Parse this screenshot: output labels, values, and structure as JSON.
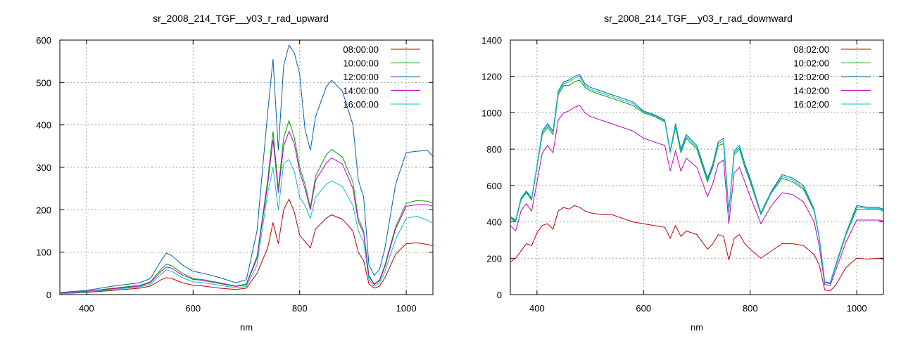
{
  "chart_data": [
    {
      "type": "line",
      "title": "sr_2008_214_TGF__y03_r_rad_upward",
      "xlabel": "nm",
      "ylabel": "",
      "xlim": [
        350,
        1050
      ],
      "ylim": [
        0,
        600
      ],
      "xticks": [
        400,
        600,
        800,
        1000
      ],
      "yticks": [
        0,
        100,
        200,
        300,
        400,
        500,
        600
      ],
      "grid": true,
      "legend_position": "top-right",
      "series": [
        {
          "name": "08:00:00",
          "color": "#c00000",
          "x": [
            350,
            400,
            450,
            500,
            520,
            540,
            550,
            560,
            580,
            600,
            620,
            650,
            680,
            700,
            720,
            740,
            750,
            760,
            770,
            780,
            790,
            800,
            810,
            820,
            830,
            850,
            860,
            880,
            900,
            910,
            920,
            930,
            940,
            950,
            960,
            980,
            1000,
            1020,
            1040,
            1050
          ],
          "values": [
            2,
            5,
            10,
            15,
            20,
            35,
            40,
            38,
            28,
            22,
            20,
            15,
            12,
            15,
            50,
            110,
            170,
            120,
            200,
            225,
            195,
            140,
            125,
            110,
            155,
            180,
            188,
            178,
            150,
            100,
            80,
            25,
            15,
            20,
            40,
            95,
            120,
            122,
            118,
            115
          ]
        },
        {
          "name": "10:00:00",
          "color": "#00a000",
          "x": [
            350,
            400,
            450,
            500,
            520,
            540,
            550,
            560,
            580,
            600,
            620,
            650,
            680,
            700,
            720,
            740,
            750,
            760,
            770,
            780,
            790,
            800,
            810,
            820,
            830,
            850,
            860,
            880,
            900,
            910,
            920,
            930,
            940,
            950,
            960,
            980,
            1000,
            1020,
            1040,
            1050
          ],
          "values": [
            3,
            8,
            15,
            22,
            30,
            60,
            72,
            68,
            50,
            38,
            35,
            28,
            20,
            25,
            90,
            270,
            385,
            250,
            370,
            410,
            370,
            300,
            260,
            205,
            280,
            330,
            342,
            325,
            265,
            180,
            150,
            45,
            25,
            35,
            70,
            160,
            215,
            222,
            220,
            215
          ]
        },
        {
          "name": "12:00:00",
          "color": "#0060b0",
          "x": [
            350,
            400,
            450,
            500,
            520,
            540,
            550,
            560,
            580,
            600,
            620,
            650,
            680,
            700,
            720,
            740,
            750,
            760,
            770,
            780,
            790,
            800,
            810,
            820,
            830,
            850,
            860,
            880,
            900,
            910,
            920,
            930,
            940,
            950,
            960,
            980,
            1000,
            1020,
            1040,
            1050
          ],
          "values": [
            5,
            10,
            20,
            28,
            38,
            80,
            98,
            92,
            70,
            55,
            50,
            40,
            28,
            35,
            150,
            430,
            555,
            340,
            540,
            588,
            570,
            520,
            390,
            340,
            420,
            490,
            505,
            480,
            400,
            270,
            230,
            70,
            45,
            60,
            110,
            260,
            335,
            338,
            340,
            325
          ]
        },
        {
          "name": "14:00:00",
          "color": "#c000c0",
          "x": [
            350,
            400,
            450,
            500,
            520,
            540,
            550,
            560,
            580,
            600,
            620,
            650,
            680,
            700,
            720,
            740,
            750,
            760,
            770,
            780,
            790,
            800,
            810,
            820,
            830,
            850,
            860,
            880,
            900,
            910,
            920,
            930,
            940,
            950,
            960,
            980,
            1000,
            1020,
            1040,
            1050
          ],
          "values": [
            3,
            8,
            14,
            20,
            28,
            55,
            65,
            62,
            46,
            36,
            33,
            26,
            19,
            23,
            85,
            260,
            365,
            240,
            350,
            385,
            355,
            290,
            250,
            200,
            270,
            310,
            322,
            308,
            250,
            172,
            145,
            42,
            24,
            33,
            66,
            155,
            208,
            212,
            212,
            208
          ]
        },
        {
          "name": "16:00:00",
          "color": "#00c0d0",
          "x": [
            350,
            400,
            450,
            500,
            520,
            540,
            550,
            560,
            580,
            600,
            620,
            650,
            680,
            700,
            720,
            740,
            750,
            760,
            770,
            780,
            790,
            800,
            810,
            820,
            830,
            850,
            860,
            880,
            900,
            910,
            920,
            930,
            940,
            950,
            960,
            980,
            1000,
            1020,
            1040,
            1050
          ],
          "values": [
            2,
            6,
            12,
            18,
            24,
            48,
            58,
            55,
            40,
            30,
            28,
            22,
            16,
            19,
            70,
            240,
            300,
            200,
            310,
            318,
            290,
            230,
            210,
            180,
            230,
            260,
            268,
            255,
            210,
            150,
            125,
            35,
            20,
            28,
            55,
            130,
            180,
            185,
            175,
            168
          ]
        }
      ]
    },
    {
      "type": "line",
      "title": "sr_2008_214_TGF__y03_r_rad_downward",
      "xlabel": "nm",
      "ylabel": "",
      "xlim": [
        350,
        1050
      ],
      "ylim": [
        0,
        1400
      ],
      "xticks": [
        400,
        600,
        800,
        1000
      ],
      "yticks": [
        0,
        200,
        400,
        600,
        800,
        1000,
        1200,
        1400
      ],
      "grid": true,
      "legend_position": "top-right",
      "series": [
        {
          "name": "08:02:00",
          "color": "#c00000",
          "x": [
            350,
            360,
            370,
            380,
            390,
            400,
            410,
            420,
            430,
            440,
            450,
            460,
            470,
            480,
            490,
            500,
            520,
            540,
            560,
            580,
            600,
            620,
            640,
            650,
            660,
            670,
            680,
            700,
            720,
            730,
            740,
            750,
            760,
            770,
            780,
            790,
            800,
            820,
            840,
            860,
            880,
            900,
            920,
            930,
            940,
            950,
            960,
            980,
            1000,
            1020,
            1040,
            1050
          ],
          "values": [
            180,
            200,
            240,
            280,
            270,
            340,
            380,
            390,
            360,
            460,
            480,
            470,
            490,
            480,
            460,
            450,
            440,
            440,
            420,
            400,
            390,
            380,
            370,
            310,
            380,
            320,
            350,
            330,
            250,
            280,
            330,
            320,
            190,
            310,
            330,
            280,
            250,
            200,
            240,
            280,
            280,
            270,
            220,
            160,
            25,
            20,
            50,
            150,
            200,
            195,
            200,
            195
          ]
        },
        {
          "name": "10:02:00",
          "color": "#00a000",
          "x": [
            350,
            360,
            370,
            380,
            390,
            400,
            410,
            420,
            430,
            440,
            450,
            460,
            470,
            480,
            490,
            500,
            520,
            540,
            560,
            580,
            600,
            620,
            640,
            650,
            660,
            670,
            680,
            700,
            720,
            730,
            740,
            750,
            760,
            770,
            780,
            790,
            800,
            820,
            840,
            860,
            880,
            900,
            920,
            930,
            940,
            950,
            960,
            980,
            1000,
            1020,
            1040,
            1050
          ],
          "values": [
            420,
            400,
            520,
            560,
            520,
            700,
            880,
            920,
            880,
            1100,
            1150,
            1150,
            1170,
            1180,
            1140,
            1120,
            1100,
            1080,
            1060,
            1040,
            1000,
            980,
            950,
            780,
            920,
            780,
            860,
            800,
            620,
            700,
            820,
            830,
            450,
            770,
            800,
            700,
            620,
            440,
            560,
            640,
            620,
            580,
            460,
            300,
            65,
            60,
            150,
            330,
            470,
            470,
            470,
            460
          ]
        },
        {
          "name": "12:02:00",
          "color": "#0060b0",
          "x": [
            350,
            360,
            370,
            380,
            390,
            400,
            410,
            420,
            430,
            440,
            450,
            460,
            470,
            480,
            490,
            500,
            520,
            540,
            560,
            580,
            600,
            620,
            640,
            650,
            660,
            670,
            680,
            700,
            720,
            730,
            740,
            750,
            760,
            770,
            780,
            790,
            800,
            820,
            840,
            860,
            880,
            900,
            920,
            930,
            940,
            950,
            960,
            980,
            1000,
            1020,
            1040,
            1050
          ],
          "values": [
            430,
            410,
            530,
            570,
            530,
            710,
            900,
            940,
            900,
            1120,
            1170,
            1180,
            1200,
            1210,
            1160,
            1140,
            1120,
            1100,
            1080,
            1060,
            1010,
            990,
            960,
            790,
            940,
            800,
            880,
            820,
            640,
            720,
            840,
            860,
            460,
            790,
            820,
            720,
            640,
            450,
            570,
            660,
            640,
            600,
            470,
            310,
            70,
            65,
            160,
            340,
            490,
            480,
            480,
            470
          ]
        },
        {
          "name": "14:02:00",
          "color": "#c000c0",
          "x": [
            350,
            360,
            370,
            380,
            390,
            400,
            410,
            420,
            430,
            440,
            450,
            460,
            470,
            480,
            490,
            500,
            520,
            540,
            560,
            580,
            600,
            620,
            640,
            650,
            660,
            670,
            680,
            700,
            720,
            730,
            740,
            750,
            760,
            770,
            780,
            790,
            800,
            820,
            840,
            860,
            880,
            900,
            920,
            930,
            940,
            950,
            960,
            980,
            1000,
            1020,
            1040,
            1050
          ],
          "values": [
            380,
            350,
            460,
            500,
            460,
            620,
            780,
            820,
            780,
            960,
            1000,
            1010,
            1030,
            1040,
            1000,
            980,
            960,
            940,
            920,
            900,
            860,
            840,
            820,
            680,
            790,
            680,
            750,
            700,
            540,
            610,
            720,
            740,
            390,
            670,
            700,
            620,
            540,
            390,
            490,
            560,
            550,
            510,
            400,
            260,
            55,
            50,
            130,
            290,
            410,
            410,
            410,
            405
          ]
        },
        {
          "name": "16:02:00",
          "color": "#00c0d0",
          "x": [
            350,
            360,
            370,
            380,
            390,
            400,
            410,
            420,
            430,
            440,
            450,
            460,
            470,
            480,
            490,
            500,
            520,
            540,
            560,
            580,
            600,
            620,
            640,
            650,
            660,
            670,
            680,
            700,
            720,
            730,
            740,
            750,
            760,
            770,
            780,
            790,
            800,
            820,
            840,
            860,
            880,
            900,
            920,
            930,
            940,
            950,
            960,
            980,
            1000,
            1020,
            1040,
            1050
          ],
          "values": [
            425,
            405,
            525,
            565,
            525,
            705,
            890,
            930,
            890,
            1110,
            1160,
            1170,
            1190,
            1200,
            1150,
            1130,
            1110,
            1090,
            1070,
            1050,
            1005,
            985,
            955,
            785,
            930,
            790,
            870,
            810,
            630,
            710,
            830,
            845,
            455,
            780,
            810,
            710,
            630,
            445,
            565,
            650,
            630,
            590,
            465,
            305,
            68,
            62,
            155,
            335,
            480,
            475,
            475,
            465
          ]
        }
      ]
    }
  ]
}
